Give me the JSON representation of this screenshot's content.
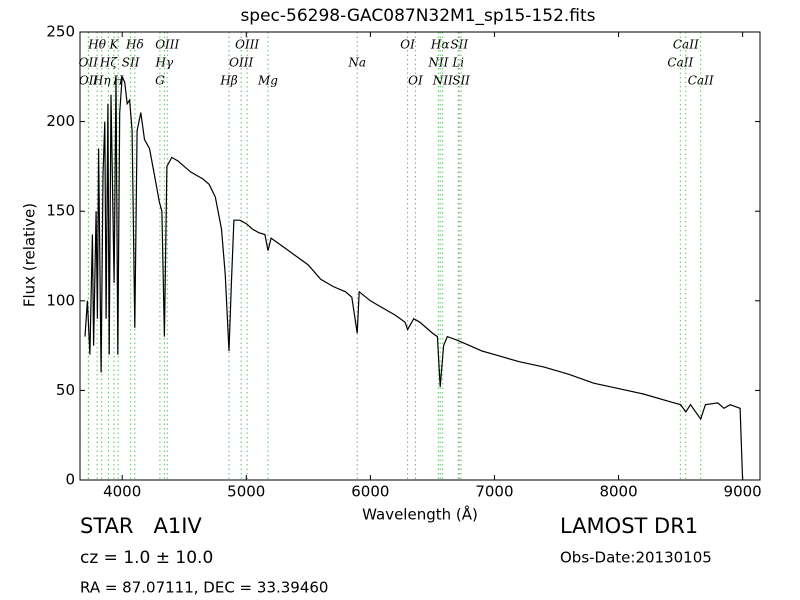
{
  "chart_data": {
    "type": "line",
    "title": "spec-56298-GAC087N32M1_sp15-152.fits",
    "x_label": "Wavelength (Å)",
    "y_label": "Flux (relative)",
    "xlim": [
      3660,
      9140
    ],
    "ylim": [
      0,
      250
    ],
    "xticks": [
      4000,
      5000,
      6000,
      7000,
      8000,
      9000
    ],
    "yticks": [
      0,
      50,
      100,
      150,
      200,
      250
    ],
    "series": [
      {
        "color": "#000000",
        "x": [
          3700,
          3720,
          3740,
          3760,
          3770,
          3790,
          3800,
          3810,
          3830,
          3845,
          3860,
          3870,
          3885,
          3895,
          3910,
          3935,
          3950,
          3965,
          3980,
          4000,
          4020,
          4040,
          4060,
          4080,
          4102,
          4120,
          4150,
          4180,
          4220,
          4260,
          4300,
          4320,
          4340,
          4360,
          4400,
          4450,
          4500,
          4550,
          4600,
          4650,
          4700,
          4750,
          4800,
          4830,
          4861,
          4880,
          4900,
          4950,
          5000,
          5050,
          5100,
          5150,
          5175,
          5200,
          5300,
          5400,
          5500,
          5600,
          5700,
          5800,
          5850,
          5894,
          5910,
          6000,
          6100,
          6200,
          6280,
          6300,
          6350,
          6400,
          6500,
          6540,
          6563,
          6590,
          6620,
          6700,
          6800,
          6900,
          7000,
          7200,
          7400,
          7600,
          7800,
          8000,
          8200,
          8400,
          8500,
          8542,
          8580,
          8662,
          8700,
          8800,
          8850,
          8900,
          8980,
          9000
        ],
        "values": [
          80,
          100,
          70,
          137,
          75,
          150,
          90,
          185,
          60,
          170,
          200,
          90,
          210,
          70,
          215,
          110,
          225,
          70,
          205,
          225,
          222,
          210,
          212,
          195,
          85,
          195,
          205,
          190,
          185,
          170,
          155,
          150,
          80,
          175,
          180,
          178,
          175,
          172,
          170,
          168,
          165,
          158,
          140,
          115,
          72,
          110,
          145,
          145,
          143,
          140,
          138,
          137,
          128,
          135,
          130,
          125,
          120,
          112,
          108,
          105,
          102,
          82,
          105,
          100,
          96,
          92,
          88,
          84,
          90,
          88,
          82,
          80,
          52,
          75,
          80,
          78,
          75,
          72,
          70,
          66,
          63,
          59,
          54,
          51,
          48,
          44,
          42,
          38,
          42,
          34,
          42,
          43,
          40,
          42,
          40,
          0
        ]
      }
    ],
    "spectral_lines": [
      {
        "name": "OII",
        "wavelength": 3727
      },
      {
        "name": "OII",
        "wavelength": 3729
      },
      {
        "name": "Hθ",
        "wavelength": 3798
      },
      {
        "name": "Hη",
        "wavelength": 3835
      },
      {
        "name": "Hζ",
        "wavelength": 3889
      },
      {
        "name": "K",
        "wavelength": 3934
      },
      {
        "name": "H",
        "wavelength": 3968
      },
      {
        "name": "SII",
        "wavelength": 4068
      },
      {
        "name": "Hδ",
        "wavelength": 4102
      },
      {
        "name": "G",
        "wavelength": 4304
      },
      {
        "name": "Hγ",
        "wavelength": 4340
      },
      {
        "name": "OIII",
        "wavelength": 4363
      },
      {
        "name": "Hβ",
        "wavelength": 4861
      },
      {
        "name": "OIII",
        "wavelength": 4959
      },
      {
        "name": "OIII",
        "wavelength": 5007
      },
      {
        "name": "Mg",
        "wavelength": 5175
      },
      {
        "name": "Na",
        "wavelength": 5894
      },
      {
        "name": "OI",
        "wavelength": 6300
      },
      {
        "name": "OI",
        "wavelength": 6363
      },
      {
        "name": "NII",
        "wavelength": 6548
      },
      {
        "name": "Hα",
        "wavelength": 6563
      },
      {
        "name": "NII",
        "wavelength": 6583
      },
      {
        "name": "Li",
        "wavelength": 6708
      },
      {
        "name": "SII",
        "wavelength": 6716
      },
      {
        "name": "SII",
        "wavelength": 6731
      },
      {
        "name": "CaII",
        "wavelength": 8498
      },
      {
        "name": "CaII",
        "wavelength": 8542
      },
      {
        "name": "CaII",
        "wavelength": 8662
      }
    ],
    "line_color": "#66bb66",
    "annotations": {
      "class": "STAR   A1IV",
      "redshift": "cz = 1.0 ± 10.0",
      "coords": "RA = 87.07111, DEC = 33.39460",
      "survey": "LAMOST DR1",
      "date": "Obs-Date:20130105"
    }
  }
}
